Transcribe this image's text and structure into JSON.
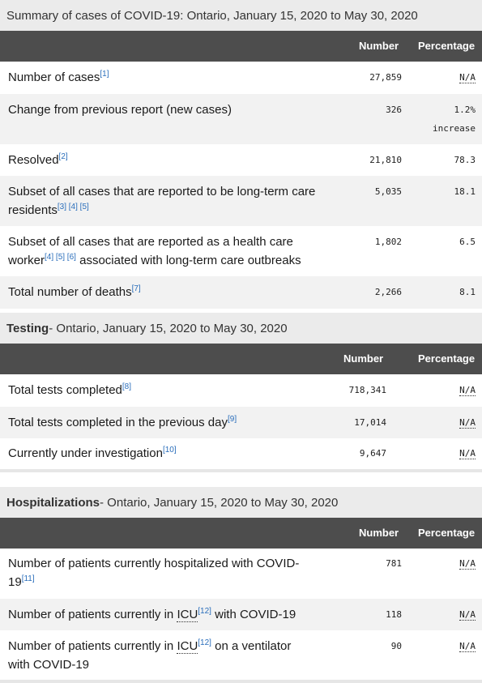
{
  "summary": {
    "caption": "Summary of cases of COVID-19: Ontario, January 15, 2020 to May 30, 2020",
    "col_number": "Number",
    "col_percentage": "Percentage",
    "rows": [
      {
        "label": "Number of cases",
        "refs": "[1]",
        "number": "27,859",
        "percentage": "N/A"
      },
      {
        "label": "Change from previous report (new cases)",
        "number": "326",
        "percentage": "1.2%",
        "percentage_sub": "increase"
      },
      {
        "label": "Resolved",
        "refs": "[2]",
        "number": "21,810",
        "percentage": "78.3"
      },
      {
        "label_line1": "Subset of all cases that are reported to be long-term care",
        "label_line2": "residents",
        "refs": "[3] [4] [5]",
        "number": "5,035",
        "percentage": "18.1"
      },
      {
        "label_line1": "Subset of all cases that are reported as a health care",
        "label_line2a": "worker",
        "refs": "[4] [5] [6]",
        "label_line2b": " associated with long-term care outbreaks",
        "number": "1,802",
        "percentage": "6.5"
      },
      {
        "label": "Total number of deaths",
        "refs": "[7]",
        "number": "2,266",
        "percentage": "8.1"
      }
    ]
  },
  "testing": {
    "caption_bold": "Testing",
    "caption_rest": " - Ontario, January 15, 2020 to May 30, 2020",
    "col_number": "Number",
    "col_percentage": "Percentage",
    "rows": [
      {
        "label": "Total tests completed",
        "refs": "[8]",
        "number": "718,341",
        "percentage": "N/A"
      },
      {
        "label": "Total tests completed in the previous day",
        "refs": "[9]",
        "number": "17,014",
        "percentage": "N/A"
      },
      {
        "label": "Currently under investigation",
        "refs": "[10]",
        "number": "9,647",
        "percentage": "N/A"
      }
    ]
  },
  "hospitalizations": {
    "caption_bold": "Hospitalizations",
    "caption_rest": " - Ontario, January 15, 2020 to May 30, 2020",
    "col_number": "Number",
    "col_percentage": "Percentage",
    "rows": [
      {
        "label_line1": "Number of patients currently hospitalized with COVID-",
        "label_line2": "19",
        "refs": "[11]",
        "number": "781",
        "percentage": "N/A"
      },
      {
        "label_a": "Number of patients currently in ",
        "abbr": "ICU",
        "refs": "[12]",
        "label_b": " with COVID-19",
        "number": "118",
        "percentage": "N/A"
      },
      {
        "label_a": "Number of patients currently in ",
        "abbr": "ICU",
        "refs": "[12]",
        "label_b": " on a ventilator",
        "label_line2": "with COVID-19",
        "number": "90",
        "percentage": "N/A"
      }
    ]
  }
}
